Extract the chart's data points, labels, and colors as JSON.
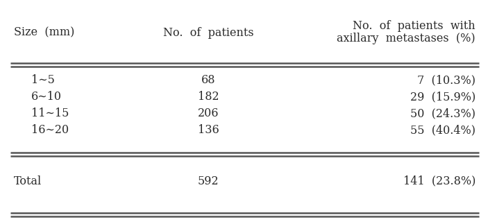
{
  "col_headers_0": "Size  (mm)",
  "col_headers_1": "No.  of  patients",
  "col_headers_2_line1": "No.  of  patients  with",
  "col_headers_2_line2": "axillary  metastases  (%)",
  "rows": [
    [
      "1∼5",
      "68",
      "7  (10.3%)"
    ],
    [
      "6∼10",
      "182",
      "29  (15.9%)"
    ],
    [
      "11∼15",
      "206",
      "50  (24.3%)"
    ],
    [
      "16∼20",
      "136",
      "55  (40.4%)"
    ]
  ],
  "total_row": [
    "Total",
    "592",
    "141  (23.8%)"
  ],
  "bg_color": "#ffffff",
  "text_color": "#2b2b2b",
  "line_color": "#555555",
  "fontsize": 11.5,
  "fig_width": 7.03,
  "fig_height": 3.23,
  "dpi": 100
}
